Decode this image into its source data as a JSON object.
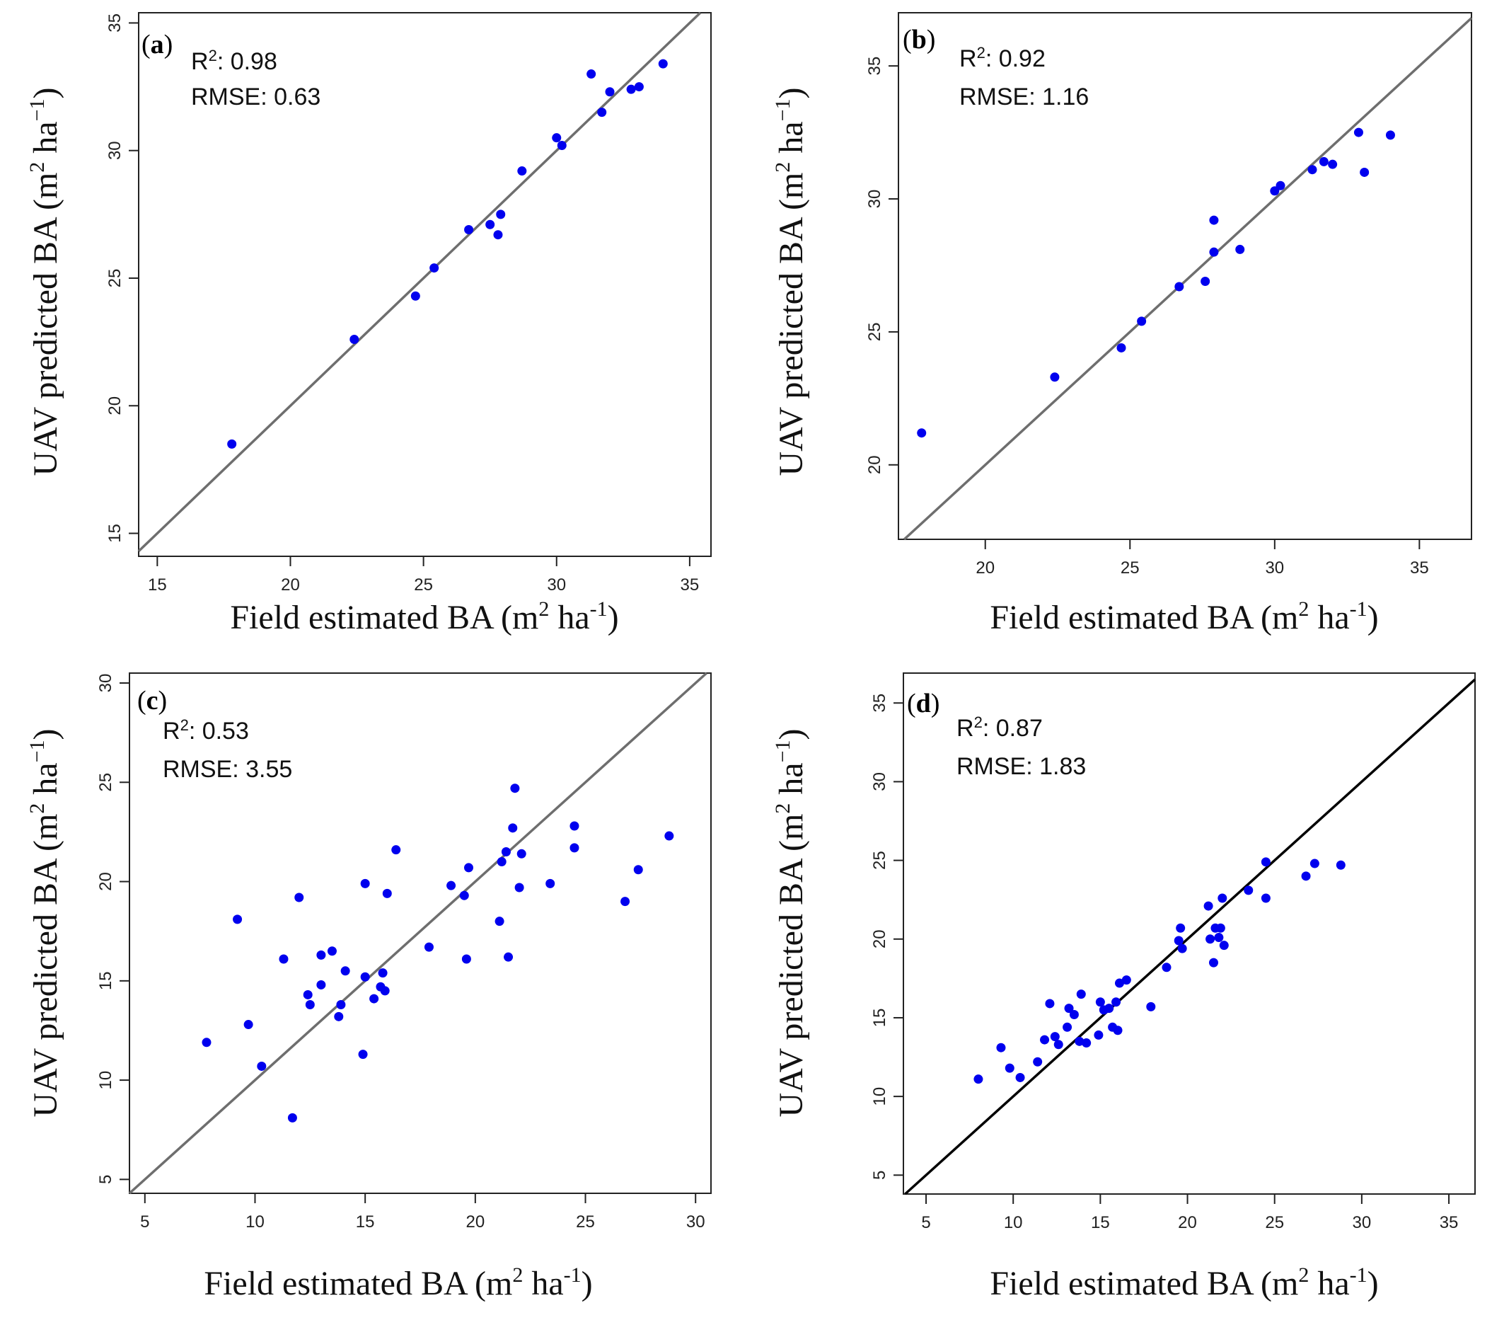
{
  "chart_data": [
    {
      "id": "a",
      "type": "scatter",
      "panel_label": "a",
      "stats": {
        "r2_label": "R",
        "r2_sup": "2",
        "r2_value": ": 0.98",
        "rmse_text": "RMSE: 0.63"
      },
      "xlabel": {
        "main": "Field estimated BA (m",
        "sup1": "2",
        "mid": " ha",
        "sup2": "-1",
        "end": ")"
      },
      "ylabel": {
        "main": "UAV predicted BA (m",
        "sup1": "2",
        "mid": " ha",
        "sup2": "−1",
        "end": ")"
      },
      "xlim": [
        14.3,
        35.8
      ],
      "ylim": [
        14.1,
        35.4
      ],
      "xticks": [
        15,
        20,
        25,
        30,
        35
      ],
      "yticks": [
        15,
        20,
        25,
        30,
        35
      ],
      "line_color": "#6e6e6e",
      "point_color": "#0000ee",
      "x": [
        17.8,
        22.4,
        24.7,
        25.4,
        26.7,
        27.5,
        27.8,
        27.9,
        28.7,
        30.0,
        30.2,
        31.3,
        31.7,
        32.0,
        32.8,
        33.1,
        34.0
      ],
      "y": [
        18.5,
        22.6,
        24.3,
        25.4,
        26.9,
        27.1,
        26.7,
        27.5,
        29.2,
        30.5,
        30.2,
        33.0,
        31.5,
        32.3,
        32.4,
        32.5,
        33.4
      ]
    },
    {
      "id": "b",
      "type": "scatter",
      "panel_label": "b",
      "stats": {
        "r2_label": "R",
        "r2_sup": "2",
        "r2_value": ": 0.92",
        "rmse_text": "RMSE: 1.16"
      },
      "xlabel": {
        "main": "Field estimated BA (m",
        "sup1": "2",
        "mid": " ha",
        "sup2": "-1",
        "end": ")"
      },
      "ylabel": {
        "main": "UAV predicted BA (m",
        "sup1": "2",
        "mid": " ha",
        "sup2": "−1",
        "end": ")"
      },
      "xlim": [
        17.0,
        36.8
      ],
      "ylim": [
        17.2,
        37.0
      ],
      "xticks": [
        20,
        25,
        30,
        35
      ],
      "yticks": [
        20,
        25,
        30,
        35
      ],
      "line_color": "#6e6e6e",
      "point_color": "#0000ee",
      "x": [
        17.8,
        22.4,
        24.7,
        25.4,
        26.7,
        27.6,
        27.9,
        27.9,
        28.8,
        30.0,
        30.2,
        31.3,
        31.7,
        32.0,
        32.9,
        33.1,
        34.0
      ],
      "y": [
        21.2,
        23.3,
        24.4,
        25.4,
        26.7,
        26.9,
        28.0,
        29.2,
        28.1,
        30.3,
        30.5,
        31.1,
        31.4,
        31.3,
        32.5,
        31.0,
        32.4
      ]
    },
    {
      "id": "c",
      "type": "scatter",
      "panel_label": "c",
      "stats": {
        "r2_label": "R",
        "r2_sup": "2",
        "r2_value": ": 0.53",
        "rmse_text": "RMSE: 3.55"
      },
      "xlabel": {
        "main": "Field estimated BA (m",
        "sup1": "2",
        "mid": " ha",
        "sup2": "-1",
        "end": ")"
      },
      "ylabel": {
        "main": "UAV predicted BA (m",
        "sup1": "2",
        "mid": " ha",
        "sup2": "−1",
        "end": ")"
      },
      "xlim": [
        4.3,
        30.7
      ],
      "ylim": [
        4.3,
        30.5
      ],
      "xticks": [
        5,
        10,
        15,
        20,
        25,
        30
      ],
      "yticks": [
        5,
        10,
        15,
        20,
        25,
        30
      ],
      "line_color": "#6e6e6e",
      "point_color": "#0000ee",
      "x": [
        7.8,
        9.2,
        9.7,
        10.3,
        11.3,
        11.7,
        12.0,
        12.4,
        12.5,
        13.0,
        13.0,
        13.5,
        13.8,
        13.9,
        14.1,
        14.9,
        15.0,
        15.0,
        15.4,
        15.7,
        15.8,
        15.9,
        16.0,
        16.4,
        17.9,
        18.9,
        19.5,
        19.6,
        19.7,
        21.1,
        21.2,
        21.4,
        21.5,
        21.7,
        21.8,
        22.0,
        22.1,
        23.4,
        24.5,
        24.5,
        26.8,
        27.4,
        28.8
      ],
      "y": [
        11.9,
        18.1,
        12.8,
        10.7,
        16.1,
        8.1,
        19.2,
        14.3,
        13.8,
        16.3,
        14.8,
        16.5,
        13.2,
        13.8,
        15.5,
        11.3,
        19.9,
        15.2,
        14.1,
        14.7,
        15.4,
        14.5,
        19.4,
        21.6,
        16.7,
        19.8,
        19.3,
        16.1,
        20.7,
        18.0,
        21.0,
        21.5,
        16.2,
        22.7,
        24.7,
        19.7,
        21.4,
        19.9,
        22.8,
        21.7,
        19.0,
        20.6,
        22.3
      ]
    },
    {
      "id": "d",
      "type": "scatter",
      "panel_label": "d",
      "stats": {
        "r2_label": "R",
        "r2_sup": "2",
        "r2_value": ": 0.87",
        "rmse_text": "RMSE: 1.83"
      },
      "xlabel": {
        "main": "Field estimated BA (m",
        "sup1": "2",
        "mid": " ha",
        "sup2": "-1",
        "end": ")"
      },
      "ylabel": {
        "main": "UAV predicted BA (m",
        "sup1": "2",
        "mid": " ha",
        "sup2": "−1",
        "end": ")"
      },
      "xlim": [
        3.7,
        36.5
      ],
      "ylim": [
        3.8,
        36.9
      ],
      "xticks": [
        5,
        10,
        15,
        20,
        25,
        30,
        35
      ],
      "yticks": [
        5,
        10,
        15,
        20,
        25,
        30,
        35
      ],
      "line_color": "#000000",
      "point_color": "#0000ee",
      "x": [
        8.0,
        9.3,
        9.8,
        10.4,
        11.4,
        11.8,
        12.1,
        12.4,
        12.6,
        13.1,
        13.2,
        13.5,
        13.8,
        13.9,
        14.2,
        14.9,
        15.0,
        15.2,
        15.5,
        15.7,
        15.9,
        16.0,
        16.1,
        16.5,
        17.9,
        18.8,
        19.5,
        19.6,
        19.7,
        21.2,
        21.3,
        21.5,
        21.6,
        21.8,
        21.9,
        22.0,
        22.1,
        23.5,
        24.5,
        24.5,
        26.8,
        27.3,
        28.8
      ],
      "y": [
        11.1,
        13.1,
        11.8,
        11.2,
        12.2,
        13.6,
        15.9,
        13.8,
        13.3,
        14.4,
        15.6,
        15.2,
        13.5,
        16.5,
        13.4,
        13.9,
        16.0,
        15.5,
        15.6,
        14.4,
        16.0,
        14.2,
        17.2,
        17.4,
        15.7,
        18.2,
        19.9,
        20.7,
        19.4,
        22.1,
        20.0,
        18.5,
        20.7,
        20.1,
        20.7,
        22.6,
        19.6,
        23.1,
        24.9,
        22.6,
        24.0,
        24.8,
        24.7
      ]
    }
  ]
}
